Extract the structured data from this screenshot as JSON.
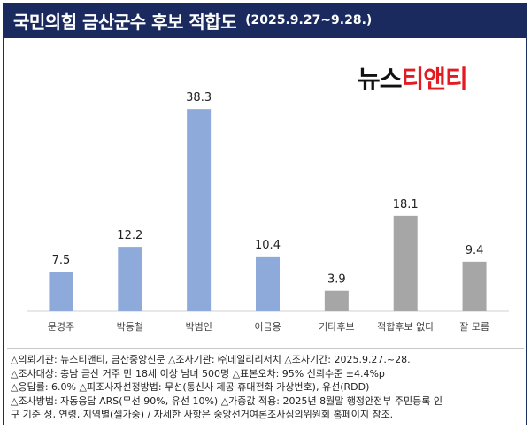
{
  "header": {
    "title": "국민의힘 금산군수 후보 적합도",
    "subtitle": "(2025.9.27~9.28.)"
  },
  "logo": {
    "part1": "뉴스",
    "part2": "티앤티"
  },
  "chart_data": {
    "type": "bar",
    "categories": [
      "문경주",
      "박동철",
      "박범인",
      "이금용",
      "기타후보",
      "적합후보 없다",
      "잘 모름"
    ],
    "values": [
      7.5,
      12.2,
      38.3,
      10.4,
      3.9,
      18.1,
      9.4
    ],
    "value_labels": [
      "7.5",
      "12.2",
      "38.3",
      "10.4",
      "3.9",
      "18.1",
      "9.4"
    ],
    "colors": [
      "#8eaadb",
      "#8eaadb",
      "#8eaadb",
      "#8eaadb",
      "#a6a6a6",
      "#a6a6a6",
      "#a6a6a6"
    ],
    "ylim": [
      0,
      40
    ],
    "grid": false,
    "title": "",
    "xlabel": "",
    "ylabel": ""
  },
  "notes": [
    "△의뢰기관: 뉴스티앤티, 금산중앙신문 △조사기관: ㈜데일리리서치 △조사기간: 2025.9.27.~28.",
    "△조사대상: 충남 금산 거주 만 18세 이상 남녀 500명 △표본오차: 95% 신뢰수준 ±4.4%p",
    "△응답률: 6.0% △피조사자선정방법: 무선(통신사 제공 휴대전화 가상번호), 유선(RDD)",
    "△조사방법: 자동응답 ARS(무선 90%, 유선 10%) △가중값 적용: 2025년 8월말 행정안전부 주민등록 인",
    "구 기준 성, 연령, 지역별(셀가중) / 자세한 사항은 중앙선거여론조사심의위원회 홈페이지 참조."
  ]
}
